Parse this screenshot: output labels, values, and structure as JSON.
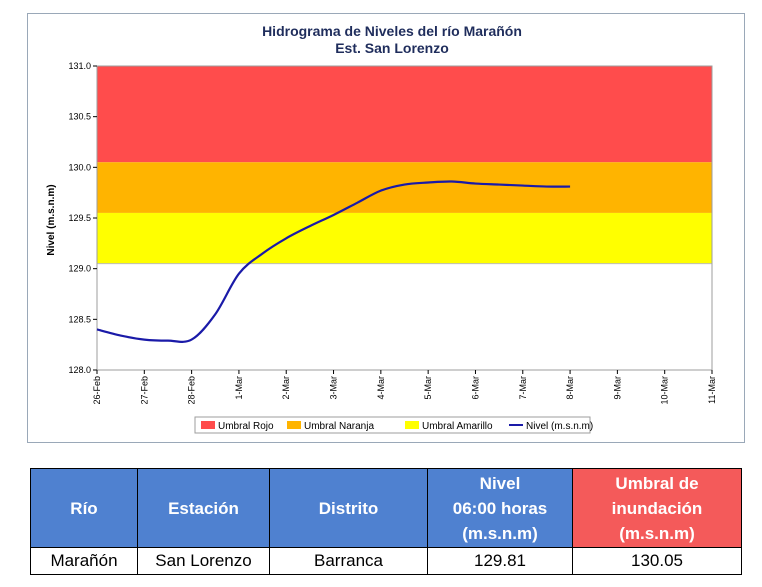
{
  "chart_data": {
    "type": "line",
    "title": "Hidrograma de Niveles del río Marañón",
    "subtitle": "Est. San Lorenzo",
    "ylabel": "Nivel (m.s.n.m)",
    "xlabel": "",
    "ylim": [
      128.0,
      131.0
    ],
    "yticks": [
      "128.0",
      "128.5",
      "129.0",
      "129.5",
      "130.0",
      "130.5",
      "131.0"
    ],
    "categories": [
      "26-Feb",
      "27-Feb",
      "28-Feb",
      "1-Mar",
      "2-Mar",
      "3-Mar",
      "4-Mar",
      "5-Mar",
      "6-Mar",
      "7-Mar",
      "8-Mar",
      "9-Mar",
      "10-Mar",
      "11-Mar"
    ],
    "bands": [
      {
        "name": "Umbral Rojo",
        "from": 130.05,
        "to": 131.0,
        "color": "#ff4c4c"
      },
      {
        "name": "Umbral Naranja",
        "from": 129.55,
        "to": 130.05,
        "color": "#ffb400"
      },
      {
        "name": "Umbral Amarillo",
        "from": 129.05,
        "to": 129.55,
        "color": "#ffff00"
      }
    ],
    "series": [
      {
        "name": "Nivel (m.s.n.m)",
        "color": "#1a1aa8",
        "x": [
          0,
          0.5,
          1.0,
          1.5,
          2.0,
          2.5,
          3.0,
          3.5,
          4.0,
          4.5,
          5.0,
          5.5,
          6.0,
          6.5,
          7.0,
          7.5,
          8.0,
          8.5,
          9.0,
          9.5,
          10.0
        ],
        "values": [
          128.4,
          128.34,
          128.3,
          128.29,
          128.3,
          128.55,
          128.95,
          129.15,
          129.3,
          129.42,
          129.53,
          129.65,
          129.77,
          129.83,
          129.85,
          129.86,
          129.84,
          129.83,
          129.82,
          129.81,
          129.81
        ]
      }
    ],
    "legend_position": "bottom"
  },
  "table": {
    "headers": [
      "Río",
      "Estación",
      "Distrito",
      "Nivel\n06:00 horas\n(m.s.n.m)",
      "Umbral de\ninundación\n(m.s.n.m)"
    ],
    "row": [
      "Marañón",
      "San Lorenzo",
      "Barranca",
      "129.81",
      "130.05"
    ]
  }
}
